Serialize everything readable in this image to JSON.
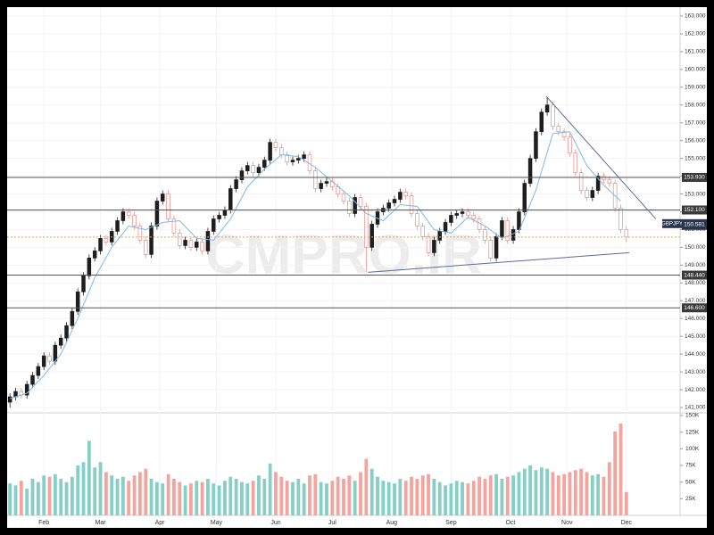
{
  "chart_data": {
    "type": "candlestick",
    "symbol": "GBPJPY",
    "watermark": "CMPRO.IR",
    "last_price": {
      "value": 150.581,
      "label": "150.581"
    },
    "grid": true,
    "up_color": "#1e1e1e",
    "down_color": "#ef8a84",
    "volume_up_color": "#86cfc6",
    "volume_down_color": "#f5a39d",
    "ma_color": "#7fb8e6",
    "trendline_color": "#5b6b9a",
    "level_color": "#555555",
    "last_price_color": "#f0a040",
    "xlim": [
      -0.5,
      118.5
    ],
    "xticks": [
      {
        "value": 6,
        "label": "Feb"
      },
      {
        "value": 16,
        "label": "Mar"
      },
      {
        "value": 26.5,
        "label": "Apr"
      },
      {
        "value": 36.5,
        "label": "May"
      },
      {
        "value": 47,
        "label": "Jun"
      },
      {
        "value": 57,
        "label": "Jul"
      },
      {
        "value": 67.5,
        "label": "Aug"
      },
      {
        "value": 78,
        "label": "Sep"
      },
      {
        "value": 88.5,
        "label": "Oct"
      },
      {
        "value": 98.5,
        "label": "Nov"
      },
      {
        "value": 109,
        "label": "Dec"
      }
    ],
    "ylim": [
      140.7,
      163.5
    ],
    "yticks": [
      {
        "value": 163,
        "label": "163.000"
      },
      {
        "value": 162,
        "label": "162.000"
      },
      {
        "value": 161,
        "label": "161.000"
      },
      {
        "value": 160,
        "label": "160.000"
      },
      {
        "value": 159,
        "label": "159.000"
      },
      {
        "value": 158,
        "label": "158.000"
      },
      {
        "value": 157,
        "label": "157.000"
      },
      {
        "value": 156,
        "label": "156.000"
      },
      {
        "value": 155,
        "label": "155.000"
      },
      {
        "value": 154,
        "label": "154.000"
      },
      {
        "value": 153,
        "label": "153.000"
      },
      {
        "value": 152,
        "label": "152.000"
      },
      {
        "value": 151,
        "label": "151.000"
      },
      {
        "value": 150,
        "label": "150.000"
      },
      {
        "value": 149,
        "label": "149.000"
      },
      {
        "value": 148,
        "label": "148.000"
      },
      {
        "value": 147,
        "label": "147.000"
      },
      {
        "value": 146,
        "label": "146.000"
      },
      {
        "value": 145,
        "label": "145.000"
      },
      {
        "value": 144,
        "label": "144.000"
      },
      {
        "value": 143,
        "label": "143.000"
      },
      {
        "value": 142,
        "label": "142.000"
      },
      {
        "value": 141,
        "label": "141.000"
      }
    ],
    "levels": [
      {
        "value": 153.93,
        "label": "153.930"
      },
      {
        "value": 152.1,
        "label": "152.100"
      },
      {
        "value": 148.44,
        "label": "148.440"
      },
      {
        "value": 146.6,
        "label": "146.600"
      }
    ],
    "trendlines": [
      {
        "x": [
          94.8,
          114.2
        ],
        "values": [
          158.5,
          151.6
        ]
      },
      {
        "x": [
          63.3,
          109.5
        ],
        "values": [
          148.6,
          149.7
        ]
      }
    ],
    "open": [
      141.3,
      141.6,
      141.9,
      141.7,
      142.3,
      142.8,
      143.3,
      143.9,
      143.6,
      144.5,
      144.9,
      145.6,
      146.4,
      147.5,
      148.4,
      149.4,
      149.8,
      150.5,
      150.3,
      150.9,
      151.5,
      152.0,
      151.8,
      151.2,
      150.4,
      149.6,
      151.2,
      152.6,
      153.0,
      151.6,
      150.8,
      150.1,
      150.4,
      150.0,
      150.3,
      149.8,
      150.9,
      151.6,
      151.8,
      152.1,
      153.3,
      153.8,
      154.3,
      154.6,
      154.2,
      154.5,
      154.9,
      155.9,
      155.6,
      155.2,
      154.8,
      154.9,
      155.0,
      155.2,
      154.3,
      153.3,
      153.6,
      153.7,
      153.4,
      153.0,
      152.6,
      151.9,
      152.8,
      152.3,
      150.0,
      151.3,
      152.0,
      152.2,
      152.5,
      152.7,
      153.1,
      152.9,
      151.9,
      151.2,
      150.6,
      149.7,
      150.4,
      150.9,
      151.4,
      151.8,
      151.9,
      152.0,
      151.8,
      151.6,
      151.0,
      150.4,
      149.4,
      150.6,
      151.5,
      150.4,
      151.0,
      152.0,
      153.6,
      155.0,
      156.5,
      157.6,
      158.0,
      156.8,
      156.5,
      156.2,
      155.3,
      154.2,
      153.2,
      152.8,
      153.2,
      154.0,
      153.8,
      153.6,
      152.2,
      151.0
    ],
    "high": [
      141.8,
      142.1,
      142.1,
      142.5,
      143.0,
      143.5,
      144.1,
      144.1,
      144.7,
      145.1,
      145.8,
      146.6,
      147.7,
      148.6,
      149.6,
      150.0,
      150.7,
      150.7,
      151.1,
      151.7,
      152.2,
      152.2,
      152.0,
      151.4,
      150.6,
      151.4,
      152.8,
      153.2,
      153.2,
      151.8,
      151.0,
      150.6,
      150.6,
      150.5,
      150.5,
      151.1,
      151.8,
      152.0,
      152.3,
      153.5,
      154.0,
      154.5,
      154.8,
      154.8,
      154.7,
      155.1,
      156.1,
      156.1,
      155.8,
      155.4,
      155.1,
      155.2,
      155.4,
      155.4,
      154.5,
      153.8,
      153.9,
      153.9,
      153.6,
      153.2,
      152.8,
      153.0,
      153.0,
      152.5,
      151.5,
      152.2,
      152.4,
      152.7,
      152.9,
      153.3,
      153.3,
      153.1,
      152.1,
      151.4,
      150.8,
      150.6,
      151.1,
      151.6,
      152.0,
      152.1,
      152.2,
      152.2,
      152.0,
      151.8,
      151.2,
      150.6,
      150.8,
      151.7,
      151.7,
      151.2,
      152.2,
      153.8,
      155.2,
      156.7,
      157.8,
      158.4,
      158.2,
      157.0,
      156.7,
      156.4,
      155.5,
      154.4,
      153.4,
      153.4,
      154.2,
      154.2,
      154.0,
      153.8,
      152.4,
      151.2
    ],
    "low": [
      141.0,
      141.4,
      141.5,
      141.5,
      142.1,
      142.6,
      143.1,
      143.4,
      143.4,
      144.3,
      144.7,
      145.4,
      146.2,
      147.3,
      148.2,
      149.2,
      149.6,
      150.1,
      150.1,
      150.7,
      151.3,
      151.6,
      151.0,
      150.2,
      149.4,
      149.4,
      151.0,
      152.4,
      151.4,
      150.6,
      149.9,
      149.9,
      149.8,
      149.8,
      149.6,
      149.6,
      150.7,
      151.4,
      151.6,
      151.9,
      153.1,
      153.6,
      154.1,
      154.0,
      154.0,
      154.3,
      154.7,
      155.4,
      155.0,
      154.6,
      154.6,
      154.7,
      154.8,
      154.1,
      153.1,
      153.1,
      153.4,
      153.2,
      152.8,
      152.4,
      151.7,
      151.7,
      152.1,
      148.6,
      149.8,
      151.1,
      151.8,
      152.0,
      152.3,
      152.5,
      152.7,
      151.7,
      151.0,
      150.4,
      149.5,
      149.5,
      150.2,
      150.7,
      151.2,
      151.6,
      151.7,
      151.6,
      151.4,
      150.8,
      150.2,
      149.2,
      149.2,
      150.4,
      150.2,
      150.2,
      150.8,
      151.8,
      153.4,
      154.8,
      156.3,
      157.4,
      156.6,
      156.3,
      156.0,
      155.1,
      154.0,
      153.0,
      152.6,
      152.6,
      153.0,
      153.6,
      153.4,
      152.0,
      150.8,
      150.3
    ],
    "close": [
      141.6,
      141.9,
      141.7,
      142.3,
      142.8,
      143.3,
      143.9,
      143.6,
      144.5,
      144.9,
      145.6,
      146.4,
      147.5,
      148.4,
      149.4,
      149.8,
      150.5,
      150.3,
      150.9,
      151.5,
      152.0,
      151.8,
      151.2,
      150.4,
      149.6,
      151.2,
      152.6,
      153.0,
      151.6,
      150.8,
      150.1,
      150.4,
      150.0,
      150.3,
      149.8,
      150.9,
      151.6,
      151.8,
      152.1,
      153.3,
      153.8,
      154.3,
      154.6,
      154.2,
      154.5,
      154.9,
      155.9,
      155.6,
      155.2,
      154.8,
      154.9,
      155.0,
      155.2,
      154.3,
      153.3,
      153.6,
      153.7,
      153.4,
      153.0,
      152.6,
      151.9,
      152.8,
      152.3,
      150.0,
      151.3,
      152.0,
      152.2,
      152.5,
      152.7,
      153.1,
      152.9,
      151.9,
      151.2,
      150.6,
      149.7,
      150.4,
      150.9,
      151.4,
      151.8,
      151.9,
      152.0,
      151.8,
      151.6,
      151.0,
      150.4,
      149.4,
      150.6,
      151.5,
      150.4,
      151.0,
      152.0,
      153.6,
      155.0,
      156.5,
      157.6,
      158.0,
      156.8,
      156.5,
      156.2,
      155.3,
      154.2,
      153.2,
      152.8,
      153.2,
      154.0,
      153.8,
      153.6,
      152.2,
      151.0,
      150.58
    ],
    "volume": [
      48000,
      45000,
      52000,
      40000,
      55000,
      50000,
      60000,
      58000,
      62000,
      55000,
      50000,
      58000,
      75000,
      80000,
      112000,
      72000,
      80000,
      65000,
      60000,
      55000,
      58000,
      52000,
      60000,
      65000,
      70000,
      55000,
      50000,
      48000,
      62000,
      55000,
      50000,
      45000,
      48000,
      52000,
      50000,
      55000,
      48000,
      45000,
      52000,
      58000,
      55000,
      50000,
      48000,
      52000,
      60000,
      55000,
      78000,
      65000,
      58000,
      52000,
      50000,
      55000,
      48000,
      60000,
      62000,
      50000,
      48000,
      52000,
      58000,
      55000,
      60000,
      52000,
      65000,
      85000,
      70000,
      58000,
      52000,
      50000,
      48000,
      55000,
      52000,
      58000,
      55000,
      60000,
      62000,
      55000,
      50000,
      45000,
      48000,
      52000,
      50000,
      48000,
      52000,
      58000,
      55000,
      60000,
      62000,
      55000,
      58000,
      60000,
      65000,
      70000,
      75000,
      68000,
      72000,
      70000,
      65000,
      60000,
      62000,
      65000,
      68000,
      70000,
      65000,
      60000,
      62000,
      58000,
      80000,
      126000,
      138000,
      35000
    ],
    "volume_ylim": [
      0,
      154000
    ],
    "volume_ticks": [
      {
        "value": 150000,
        "label": "150K"
      },
      {
        "value": 125000,
        "label": "125K"
      },
      {
        "value": 100000,
        "label": "100K"
      },
      {
        "value": 75000,
        "label": "75K"
      },
      {
        "value": 50000,
        "label": "50K"
      },
      {
        "value": 25000,
        "label": "25K"
      }
    ],
    "ma": {
      "x": [
        0,
        3,
        6,
        9,
        12,
        15,
        18,
        21,
        24,
        27,
        30,
        33,
        36,
        39,
        42,
        45,
        48,
        51,
        54,
        57,
        60,
        63,
        66,
        69,
        72,
        75,
        78,
        81,
        84,
        87,
        90,
        93,
        96,
        99,
        102,
        105,
        108
      ],
      "values": [
        141.5,
        141.8,
        142.8,
        144.0,
        146.0,
        148.3,
        150.0,
        151.2,
        151.0,
        151.4,
        151.5,
        150.5,
        150.4,
        151.6,
        153.4,
        154.4,
        155.2,
        155.1,
        154.5,
        153.7,
        152.9,
        151.9,
        151.5,
        152.4,
        152.3,
        151.0,
        150.8,
        151.7,
        151.2,
        150.5,
        150.9,
        153.2,
        156.4,
        156.5,
        154.6,
        153.5,
        152.6
      ]
    }
  }
}
